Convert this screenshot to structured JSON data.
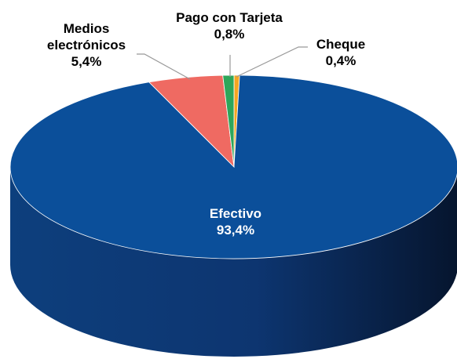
{
  "chart_data": {
    "type": "pie",
    "categories": [
      "Cheque",
      "Efectivo",
      "Medios electrónicos",
      "Pago con Tarjeta"
    ],
    "values": [
      0.4,
      93.4,
      5.4,
      0.8
    ],
    "value_labels": [
      "0,4%",
      "93,4%",
      "5,4%",
      "0,8%"
    ],
    "colors": [
      "#f5a623",
      "#0b4f9a",
      "#ef6a62",
      "#2ea65a"
    ]
  }
}
